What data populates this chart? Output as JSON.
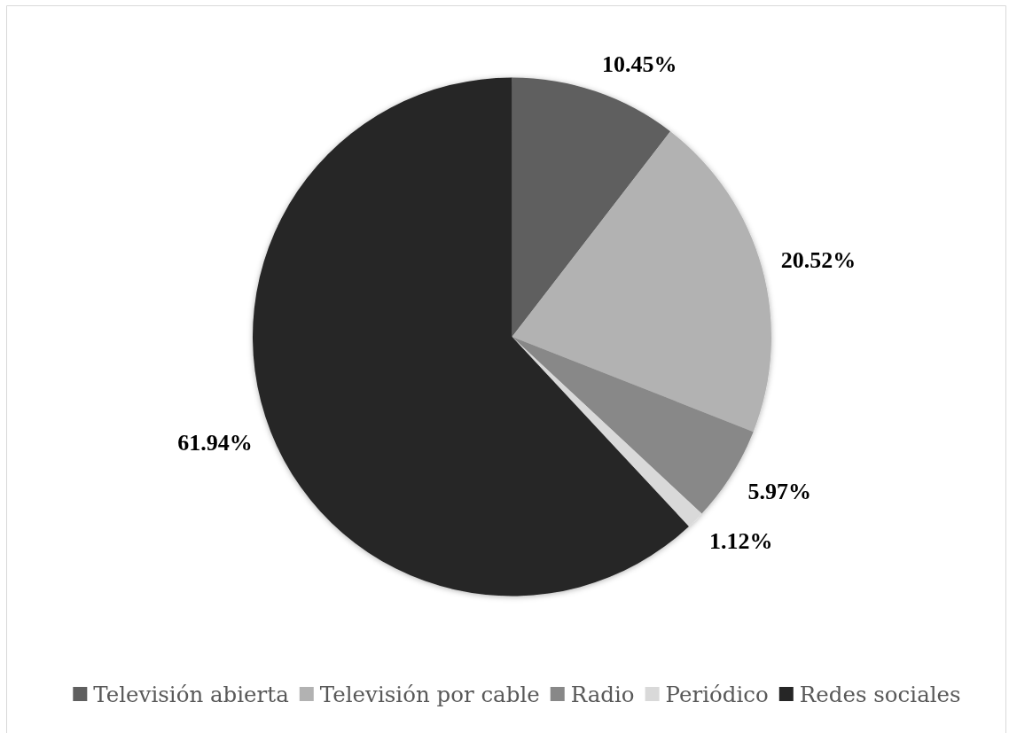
{
  "chart_data": {
    "type": "pie",
    "categories": [
      "Televisión abierta",
      "Televisión por cable",
      "Radio",
      "Periódico",
      "Redes sociales"
    ],
    "values": [
      10.45,
      20.52,
      5.97,
      1.12,
      61.94
    ],
    "colors": [
      "#5f5f5f",
      "#b2b2b2",
      "#888888",
      "#d9d9d9",
      "#262626"
    ],
    "value_labels": [
      "10.45%",
      "20.52%",
      "5.97%",
      "1.12%",
      "61.94%"
    ],
    "legend": "bottom"
  }
}
